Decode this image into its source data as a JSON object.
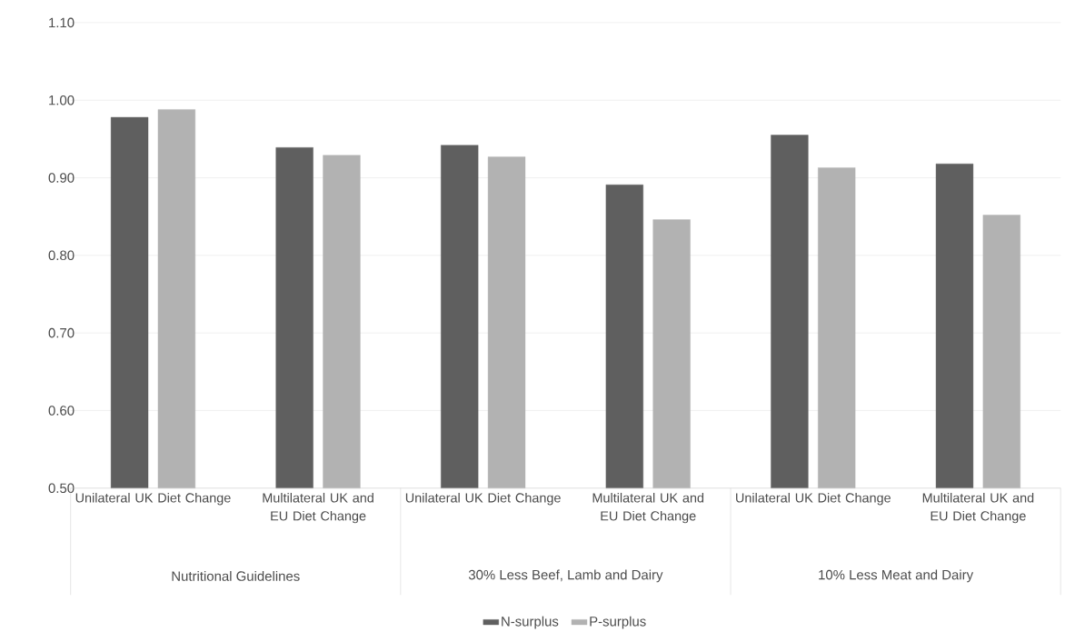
{
  "chart_data": {
    "type": "bar",
    "categories": [
      "Unilateral UK Diet Change",
      "Multilateral UK and EU Diet Change",
      "Unilateral UK Diet Change",
      "Multilateral UK and EU Diet Change",
      "Unilateral UK Diet Change",
      "Multilateral UK and EU Diet Change"
    ],
    "series": [
      {
        "name": "N-surplus",
        "color": "#5f5f5f",
        "values": [
          0.978,
          0.939,
          0.942,
          0.891,
          0.955,
          0.918
        ]
      },
      {
        "name": "P-surplus",
        "color": "#b2b2b2",
        "values": [
          0.988,
          0.929,
          0.927,
          0.846,
          0.913,
          0.852
        ]
      }
    ],
    "ylim": [
      0.5,
      1.1
    ],
    "yticks": [
      {
        "value": 0.5,
        "label": "0.50"
      },
      {
        "value": 0.6,
        "label": "0.60"
      },
      {
        "value": 0.7,
        "label": "0.70"
      },
      {
        "value": 0.8,
        "label": "0.80"
      },
      {
        "value": 0.9,
        "label": "0.90"
      },
      {
        "value": 1.0,
        "label": "1.00"
      },
      {
        "value": 1.1,
        "label": "1.10"
      }
    ],
    "grid": "y",
    "legend": "bottom",
    "annotations": [
      "Nutritional Guidelines",
      "30% Less Beef, Lamb and Dairy",
      "10% Less Meat and Dairy"
    ]
  }
}
